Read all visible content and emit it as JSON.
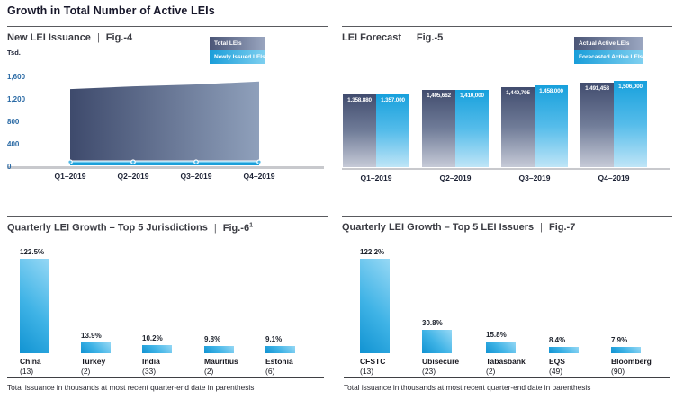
{
  "page_title": "Growth in Total Number of Active LEIs",
  "divider": "|",
  "footnote": "Total issuance in thousands at most recent quarter-end date in parenthesis",
  "colors": {
    "accent_light_blue": "#1b9fd9",
    "accent_dark_navy": "#454f72",
    "axis_tick_blue": "#2a6aa5",
    "baseline_gray": "#c8c9cd"
  },
  "chart_data": [
    {
      "id": "fig4",
      "type": "area",
      "title": "New LEI Issuance",
      "fig_label": "Fig.-4",
      "unit": "Tsd.",
      "legend": [
        "Total LEIs",
        "Newly Issued LEIs"
      ],
      "legend_position": "top-right",
      "categories": [
        "Q1–2019",
        "Q2–2019",
        "Q3–2019",
        "Q4–2019"
      ],
      "series": [
        {
          "name": "Total LEIs",
          "values": [
            1358.88,
            1405.662,
            1440.795,
            1491.458
          ]
        },
        {
          "name": "Newly Issued LEIs",
          "values": [
            66,
            66,
            66,
            66
          ],
          "note": "estimated from plot"
        }
      ],
      "ylabel": "Tsd.",
      "yticks": [
        0,
        400,
        800,
        1200,
        1600
      ],
      "ytick_labels": [
        "0",
        "400",
        "800",
        "1,200",
        "1,600"
      ],
      "ylim": [
        0,
        1600
      ],
      "grid": false
    },
    {
      "id": "fig5",
      "type": "bar",
      "title": "LEI Forecast",
      "fig_label": "Fig.-5",
      "legend": [
        "Actual Active LEIs",
        "Forecasted Active LEIs"
      ],
      "legend_position": "top-right",
      "categories": [
        "Q1–2019",
        "Q2–2019",
        "Q3–2019",
        "Q4–2019"
      ],
      "series": [
        {
          "name": "Actual Active LEIs",
          "values": [
            1358880,
            1405662,
            1440795,
            1491458
          ],
          "labels": [
            "1,358,880",
            "1,405,662",
            "1,440,795",
            "1,491,458"
          ]
        },
        {
          "name": "Forecasted Active LEIs",
          "values": [
            1357000,
            1410000,
            1458000,
            1506000
          ],
          "labels": [
            "1,357,000",
            "1,410,000",
            "1,458,000",
            "1,506,000"
          ]
        }
      ],
      "grid": false
    },
    {
      "id": "fig6",
      "type": "bar",
      "title": "Quarterly LEI Growth – Top 5 Jurisdictions",
      "fig_label": "Fig.-6",
      "fig_superscript": "1",
      "categories": [
        "China",
        "Turkey",
        "India",
        "Mauritius",
        "Estonia"
      ],
      "category_sublabels": [
        "(13)",
        "(2)",
        "(33)",
        "(2)",
        "(6)"
      ],
      "values": [
        122.5,
        13.9,
        10.2,
        9.8,
        9.1
      ],
      "value_labels": [
        "122.5%",
        "13.9%",
        "10.2%",
        "9.8%",
        "9.1%"
      ],
      "grid": false
    },
    {
      "id": "fig7",
      "type": "bar",
      "title": "Quarterly LEI Growth – Top 5 LEI Issuers",
      "fig_label": "Fig.-7",
      "categories": [
        "CFSTC",
        "Ubisecure",
        "Tabasbank",
        "EQS",
        "Bloomberg"
      ],
      "category_sublabels": [
        "(13)",
        "(23)",
        "(2)",
        "(49)",
        "(90)"
      ],
      "values": [
        122.2,
        30.8,
        15.8,
        8.4,
        7.9
      ],
      "value_labels": [
        "122.2%",
        "30.8%",
        "15.8%",
        "8.4%",
        "7.9%"
      ],
      "grid": false
    }
  ]
}
